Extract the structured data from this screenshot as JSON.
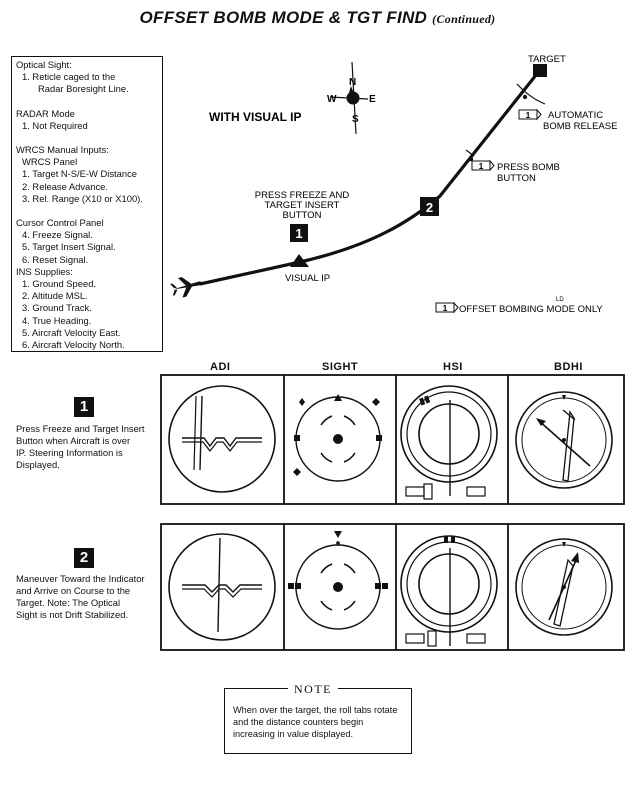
{
  "title": "OFFSET BOMB MODE & TGT FIND",
  "title_suffix": "(Continued)",
  "requirements": {
    "optical_sight_head": "Optical Sight:",
    "optical_sight_item": "1.   Reticle caged to the",
    "optical_sight_item_cont": "Radar Boresight Line.",
    "radar_head": "RADAR Mode",
    "radar_item": "1.   Not Required",
    "wrcs_head": "WRCS Manual Inputs:",
    "wrcs_panel": "WRCS Panel",
    "wrcs_items": [
      "1.  Target N-S/E-W Distance",
      "2.  Release Advance.",
      "3.  Rel. Range (X10 or X100)."
    ],
    "cursor_head": "Cursor Control Panel",
    "cursor_items": [
      "4.  Freeze Signal.",
      "5.  Target Insert Signal.",
      "6.  Reset Signal."
    ],
    "ins_head": "INS Supplies:",
    "ins_items": [
      "1.  Ground Speed.",
      "2.  Altitude MSL.",
      "3.  Ground Track.",
      "4.  True Heading.",
      "5.  Aircraft Velocity East.",
      "6.  Aircraft Velocity North."
    ]
  },
  "map": {
    "compass": {
      "n": "N",
      "s": "S",
      "e": "E",
      "w": "W"
    },
    "with_visual_ip": "WITH VISUAL IP",
    "target_label": "TARGET",
    "visual_ip_label": "VISUAL IP",
    "press_freeze_lines": [
      "PRESS FREEZE AND",
      "TARGET INSERT",
      "BUTTON"
    ],
    "marker_1": "1",
    "marker_2": "2",
    "callout_num": "1",
    "auto_release_lines": [
      "AUTOMATIC",
      "BOMB RELEASE"
    ],
    "press_bomb_lines": [
      "PRESS BOMB",
      "BUTTON"
    ],
    "offset_only": "OFFSET BOMBING MODE ONLY",
    "small_mark": "LD"
  },
  "columns": [
    "ADI",
    "SIGHT",
    "HSI",
    "BDHI"
  ],
  "steps": [
    {
      "num": "1",
      "text_lines": [
        "Press Freeze and Target Insert",
        "Button when Aircraft is over",
        "IP.  Steering Information is",
        "Displayed."
      ]
    },
    {
      "num": "2",
      "text_lines": [
        "Maneuver Toward the Indicator",
        "and Arrive on Course to the",
        "Target.  Note:  The Optical",
        "Sight is not Drift Stabilized."
      ]
    }
  ],
  "note": {
    "title": "NOTE",
    "text": "When over the target, the roll tabs rotate and the distance counters begin increasing in value displayed."
  },
  "colors": {
    "ink": "#111111",
    "paper": "#ffffff"
  }
}
